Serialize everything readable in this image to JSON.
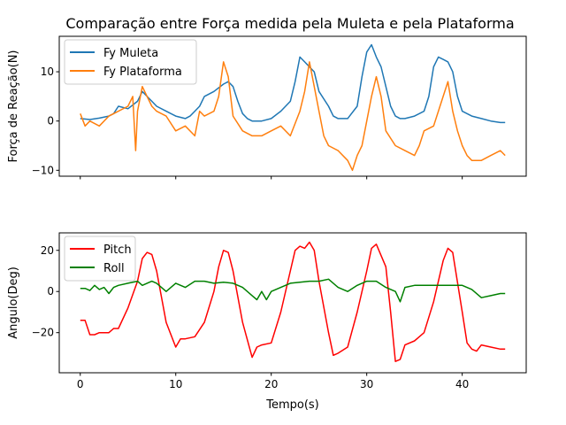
{
  "colors": {
    "fy_muleta": "#1f77b4",
    "fy_plataforma": "#ff7f0e",
    "pitch": "#ff0000",
    "roll": "#008000",
    "axes": "#000000",
    "background": "#ffffff"
  },
  "chart_data": [
    {
      "type": "line",
      "title": "Comparação entre Força medida pela Muleta e pela Plataforma",
      "xlabel": "",
      "ylabel": "Força de Reação(N)",
      "xlim": [
        -2.2,
        46.7
      ],
      "ylim": [
        -11.2,
        17.2
      ],
      "yticks": [
        -10,
        0,
        10
      ],
      "ytick_labels": [
        "−10",
        "0",
        "10"
      ],
      "xticks": [
        0,
        10,
        20,
        30,
        40
      ],
      "show_xtick_labels": false,
      "grid": false,
      "legend_position": "upper-left",
      "series": [
        {
          "name": "Fy Muleta",
          "color": "#1f77b4",
          "x": [
            0,
            1,
            2,
            3,
            3.5,
            4,
            5,
            6,
            6.5,
            7,
            7.5,
            8,
            9,
            10,
            11,
            11.5,
            12,
            12.5,
            13,
            14,
            15,
            15.5,
            16,
            16.5,
            17,
            17.5,
            18,
            19,
            20,
            21,
            22,
            22.5,
            23,
            23.5,
            24,
            24.5,
            25,
            26,
            26.5,
            27,
            28,
            29,
            29.5,
            30,
            30.5,
            31,
            31.5,
            32,
            32.5,
            33,
            33.5,
            34,
            35,
            36,
            36.5,
            37,
            37.5,
            38,
            38.5,
            39,
            39.5,
            40,
            41,
            42,
            43,
            44,
            44.5
          ],
          "values": [
            0.5,
            0.3,
            0.6,
            1,
            1.5,
            3,
            2.5,
            4,
            6,
            5,
            4,
            3,
            2,
            1,
            0.5,
            1,
            2,
            3,
            5,
            6,
            7.5,
            8,
            7,
            4,
            1.5,
            0.5,
            0,
            0,
            0.5,
            2,
            4,
            8,
            13,
            12,
            11,
            10,
            6,
            3,
            1,
            0.5,
            0.5,
            3,
            9,
            14,
            15.5,
            13,
            11,
            7,
            3,
            1,
            0.5,
            0.5,
            1,
            2,
            5,
            11,
            13,
            12.5,
            12,
            10,
            5,
            2,
            1,
            0.5,
            0,
            -0.3,
            -0.3
          ]
        },
        {
          "name": "Fy Plataforma",
          "color": "#ff7f0e",
          "x": [
            0,
            0.5,
            1,
            2,
            3,
            4,
            5,
            5.5,
            5.8,
            6,
            6.5,
            7,
            7.5,
            8,
            9,
            10,
            11,
            12,
            12.5,
            13,
            14,
            14.5,
            15,
            15.5,
            16,
            17,
            18,
            19,
            20,
            21,
            22,
            23,
            23.5,
            24,
            24.5,
            25,
            25.5,
            26,
            27,
            28,
            28.5,
            29,
            29.5,
            30,
            30.5,
            31,
            31.5,
            32,
            33,
            34,
            35,
            35.5,
            36,
            37,
            38,
            38.5,
            39,
            39.5,
            40,
            40.5,
            41,
            42,
            43,
            44,
            44.5
          ],
          "values": [
            1.5,
            -1,
            0,
            -1,
            1,
            2,
            3,
            5,
            -6,
            2,
            7,
            5,
            3,
            2,
            1,
            -2,
            -1,
            -3,
            2,
            1,
            2,
            5,
            12,
            9,
            1,
            -2,
            -3,
            -3,
            -2,
            -1,
            -3,
            2,
            6,
            12,
            7,
            2,
            -3,
            -5,
            -6,
            -8,
            -10,
            -7,
            -5,
            0,
            5,
            9,
            5,
            -2,
            -5,
            -6,
            -7,
            -5,
            -2,
            -1,
            5,
            8,
            2,
            -2,
            -5,
            -7,
            -8,
            -8,
            -7,
            -6,
            -7
          ]
        }
      ]
    },
    {
      "type": "line",
      "title": "",
      "xlabel": "Tempo(s)",
      "ylabel": "Angulo(Deg)",
      "xlim": [
        -2.2,
        46.7
      ],
      "ylim": [
        -39.5,
        28.5
      ],
      "yticks": [
        -20,
        0,
        20
      ],
      "ytick_labels": [
        "−20",
        "0",
        "20"
      ],
      "xticks": [
        0,
        10,
        20,
        30,
        40
      ],
      "xtick_labels": [
        "0",
        "10",
        "20",
        "30",
        "40"
      ],
      "grid": false,
      "legend_position": "upper-left",
      "series": [
        {
          "name": "Pitch",
          "color": "#ff0000",
          "x": [
            0,
            0.5,
            1,
            1.5,
            2,
            3,
            3.5,
            4,
            5,
            6,
            6.5,
            7,
            7.5,
            8,
            9,
            10,
            10.5,
            11,
            12,
            13,
            14,
            14.5,
            15,
            15.5,
            16,
            17,
            18,
            18.5,
            19,
            20,
            21,
            22,
            22.5,
            23,
            23.5,
            24,
            24.5,
            25,
            26,
            26.5,
            27,
            28,
            29,
            30,
            30.5,
            31,
            32,
            32.5,
            33,
            33.5,
            34,
            35,
            36,
            37,
            38,
            38.5,
            39,
            40,
            40.5,
            41,
            41.5,
            42,
            43,
            44,
            44.5
          ],
          "values": [
            -14,
            -14,
            -21,
            -21,
            -20,
            -20,
            -18,
            -18,
            -8,
            5,
            16,
            19,
            18,
            10,
            -15,
            -27,
            -23,
            -23,
            -22,
            -15,
            0,
            12,
            20,
            19,
            10,
            -15,
            -32,
            -27,
            -26,
            -25,
            -10,
            10,
            20,
            22,
            21,
            24,
            20,
            5,
            -20,
            -31,
            -30,
            -27,
            -10,
            10,
            21,
            23,
            12,
            -10,
            -34,
            -33,
            -26,
            -24,
            -20,
            -5,
            15,
            21,
            19,
            -10,
            -25,
            -28,
            -29,
            -26,
            -27,
            -28,
            -28
          ]
        },
        {
          "name": "Roll",
          "color": "#008000",
          "x": [
            0,
            0.5,
            1,
            1.5,
            2,
            2.5,
            3,
            3.5,
            4,
            5,
            6,
            6.5,
            7,
            7.5,
            8,
            9,
            10,
            11,
            12,
            13,
            14,
            15,
            16,
            17,
            18,
            18.5,
            19,
            19.5,
            20,
            22,
            24,
            25,
            26,
            27,
            28,
            29,
            30,
            31,
            32,
            33,
            33.5,
            34,
            35,
            36,
            38,
            40,
            41,
            42,
            43,
            44,
            44.5
          ],
          "values": [
            1.5,
            1.5,
            0.5,
            3,
            1,
            2,
            -1,
            2,
            3,
            4,
            5,
            3,
            4,
            5,
            4,
            0,
            4,
            2,
            5,
            5,
            4,
            4.5,
            4,
            2,
            -2,
            -4,
            0,
            -4,
            0,
            4,
            5,
            5,
            6,
            2,
            0,
            3,
            5,
            5,
            2,
            0,
            -5,
            2,
            3,
            3,
            3,
            3,
            1,
            -3,
            -2,
            -1,
            -1
          ]
        }
      ]
    }
  ]
}
